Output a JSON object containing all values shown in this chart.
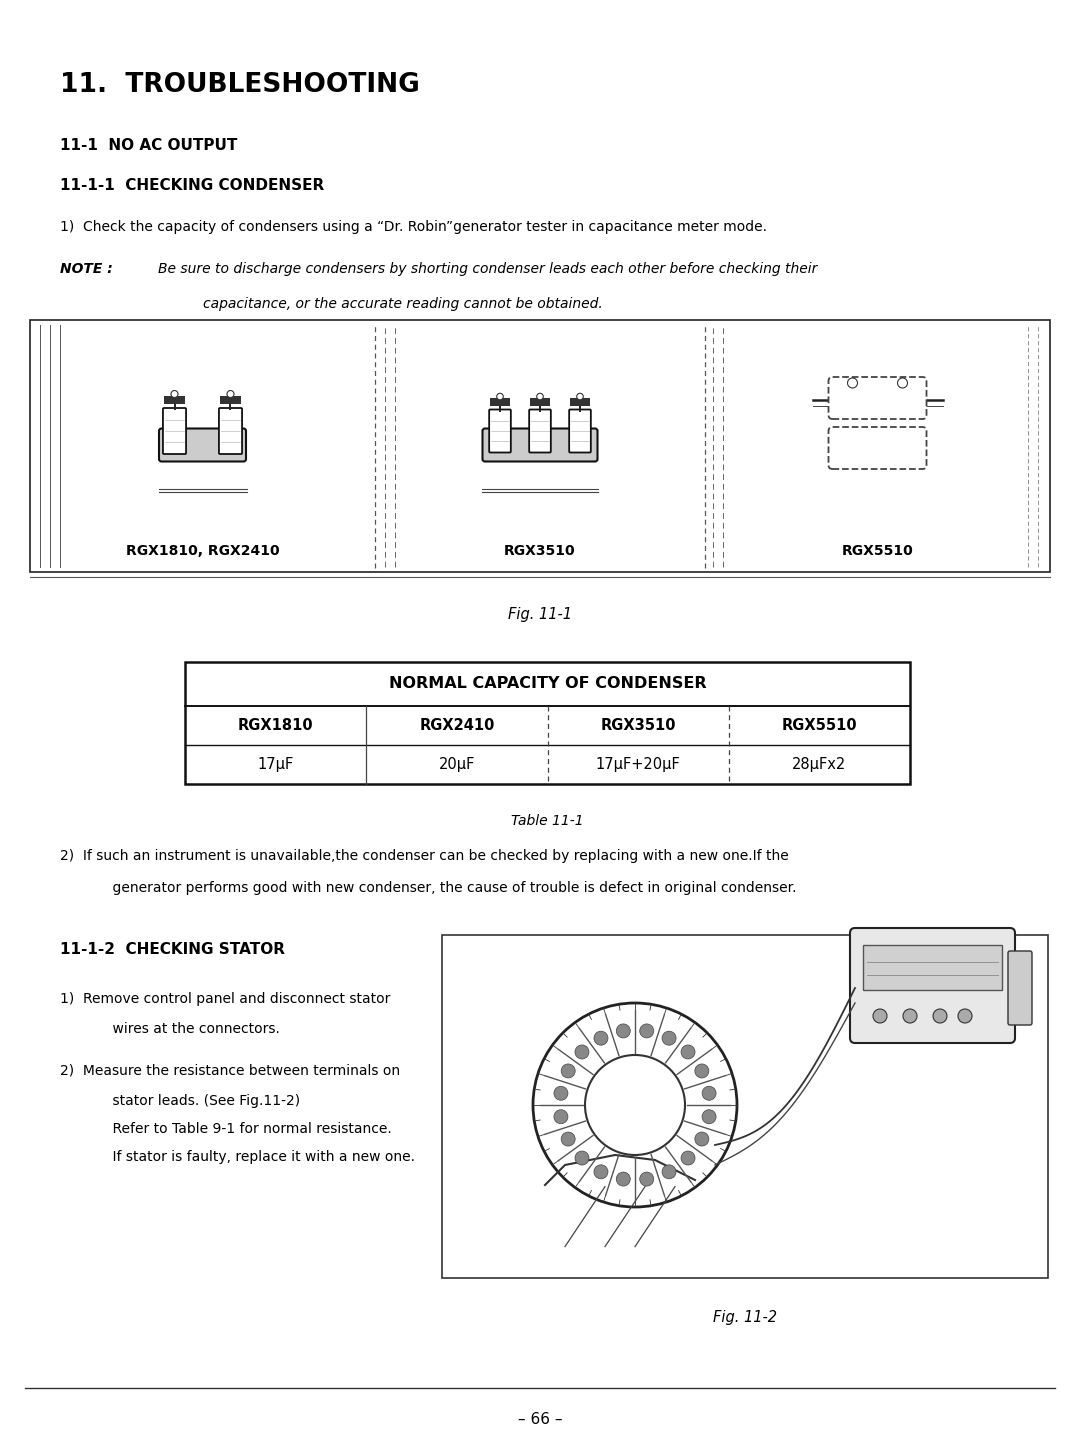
{
  "title": "11.  TROUBLESHOOTING",
  "section_11_1": "11-1  NO AC OUTPUT",
  "section_11_1_1": "11-1-1  CHECKING CONDENSER",
  "step1_text": "1)  Check the capacity of condensers using a “Dr. Robin”generator tester in capacitance meter mode.",
  "note_label": "NOTE :",
  "note_text_line1": "Be sure to discharge condensers by shorting condenser leads each other before checking their",
  "note_text_line2": "capacitance, or the accurate reading cannot be obtained.",
  "fig_label1": "Fig. 11-1",
  "table_title": "NORMAL CAPACITY OF CONDENSER",
  "table_headers": [
    "RGX1810",
    "RGX2410",
    "RGX3510",
    "RGX5510"
  ],
  "table_values": [
    "17μF",
    "20μF",
    "17μF+20μF",
    "28μFx2"
  ],
  "table_label": "Table 11-1",
  "step2_text_line1": "2)  If such an instrument is unavailable,the condenser can be checked by replacing with a new one.If the",
  "step2_text_line2": "    generator performs good with new condenser, the cause of trouble is defect in original condenser.",
  "section_11_1_2": "11-1-2  CHECKING STATOR",
  "stator_step1_line1": "1)  Remove control panel and disconnect stator",
  "stator_step1_line2": "    wires at the connectors.",
  "stator_step2_line1": "2)  Measure the resistance between terminals on",
  "stator_step2_line2": "    stator leads. (See Fig.11-2)",
  "stator_step2_line3": "    Refer to Table 9-1 for normal resistance.",
  "stator_step2_line4": "    If stator is faulty, replace it with a new one.",
  "fig_label2": "Fig. 11-2",
  "page_number": "– 66 –",
  "bg_color": "#ffffff",
  "text_color": "#000000",
  "label_rgx1": "RGX1810, RGX2410",
  "label_rgx3": "RGX3510",
  "label_rgx5": "RGX5510"
}
